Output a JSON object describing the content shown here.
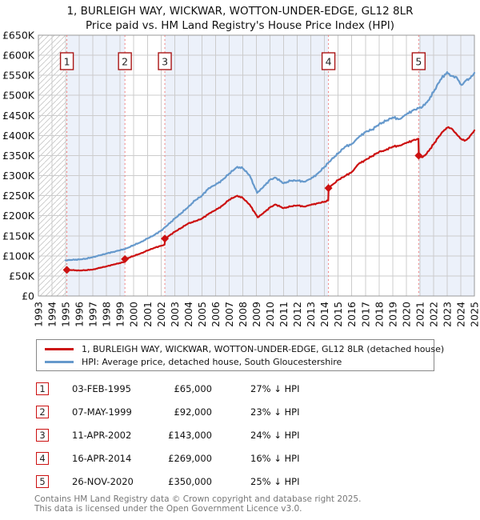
{
  "title": {
    "line1": "1, BURLEIGH WAY, WICKWAR, WOTTON-UNDER-EDGE, GL12 8LR",
    "line2": "Price paid vs. HM Land Registry's House Price Index (HPI)"
  },
  "legend": {
    "items": [
      {
        "label": "1, BURLEIGH WAY, WICKWAR, WOTTON-UNDER-EDGE, GL12 8LR (detached house)",
        "color": "#cc1111"
      },
      {
        "label": "HPI: Average price, detached house, South Gloucestershire",
        "color": "#6699cc"
      }
    ]
  },
  "footer": {
    "line1": "Contains HM Land Registry data © Crown copyright and database right 2025.",
    "line2": "This data is licensed under the Open Government Licence v3.0."
  },
  "chart_data": {
    "type": "line",
    "title": "Price paid vs. HPI",
    "xlabel": "",
    "ylabel": "",
    "xlim": [
      1993,
      2025
    ],
    "ylim": [
      0,
      650
    ],
    "ytick_step": 50,
    "ytick_labels": [
      "£0",
      "£50K",
      "£100K",
      "£150K",
      "£200K",
      "£250K",
      "£300K",
      "£350K",
      "£400K",
      "£450K",
      "£500K",
      "£550K",
      "£600K",
      "£650K"
    ],
    "xticks": [
      1993,
      1994,
      1995,
      1996,
      1997,
      1998,
      1999,
      2000,
      2001,
      2002,
      2003,
      2004,
      2005,
      2006,
      2007,
      2008,
      2009,
      2010,
      2011,
      2012,
      2013,
      2014,
      2015,
      2016,
      2017,
      2018,
      2019,
      2020,
      2021,
      2022,
      2023,
      2024,
      2025
    ],
    "grid": true,
    "legend_position": "below",
    "colors": {
      "band": "#ecf1fa",
      "grid": "#cccccc",
      "border": "#999999",
      "dashed": "#f28080",
      "hatch": "#c4c4c4",
      "marker_border": "#aa1616",
      "axis_text": "#111111"
    },
    "series": [
      {
        "name": "1, BURLEIGH WAY, WICKWAR, WOTTON-UNDER-EDGE, GL12 8LR (detached house)",
        "color": "#cc1111",
        "points": [
          [
            1995.09,
            65
          ],
          [
            1995.5,
            64.5
          ],
          [
            1996,
            63.5
          ],
          [
            1996.5,
            64.5
          ],
          [
            1997,
            66
          ],
          [
            1997.5,
            70
          ],
          [
            1998,
            74
          ],
          [
            1998.6,
            79
          ],
          [
            1999.2,
            84
          ],
          [
            1999.33,
            85
          ],
          [
            1999.36,
            92
          ],
          [
            2000,
            100
          ],
          [
            2000.5,
            106
          ],
          [
            2001,
            113
          ],
          [
            2001.5,
            120
          ],
          [
            2002.2,
            127
          ],
          [
            2002.26,
            128
          ],
          [
            2002.3,
            143
          ],
          [
            2003,
            160
          ],
          [
            2003.5,
            170
          ],
          [
            2004,
            181
          ],
          [
            2004.5,
            186
          ],
          [
            2005,
            193
          ],
          [
            2005.6,
            207
          ],
          [
            2006,
            214
          ],
          [
            2006.5,
            225
          ],
          [
            2007,
            240
          ],
          [
            2007.6,
            250
          ],
          [
            2008,
            244
          ],
          [
            2008.5,
            228
          ],
          [
            2009.1,
            196
          ],
          [
            2009.5,
            206
          ],
          [
            2010,
            221
          ],
          [
            2010.4,
            228
          ],
          [
            2011,
            219
          ],
          [
            2011.5,
            223
          ],
          [
            2012,
            226
          ],
          [
            2012.5,
            223
          ],
          [
            2013,
            227
          ],
          [
            2013.5,
            231
          ],
          [
            2014,
            235
          ],
          [
            2014.27,
            238
          ],
          [
            2014.3,
            269
          ],
          [
            2015,
            289
          ],
          [
            2015.5,
            299
          ],
          [
            2016,
            309
          ],
          [
            2016.5,
            329
          ],
          [
            2017,
            339
          ],
          [
            2017.5,
            349
          ],
          [
            2018,
            359
          ],
          [
            2018.4,
            363
          ],
          [
            2019,
            372
          ],
          [
            2019.5,
            375
          ],
          [
            2020,
            381
          ],
          [
            2020.5,
            388
          ],
          [
            2020.89,
            392
          ],
          [
            2020.92,
            350
          ],
          [
            2021.2,
            346
          ],
          [
            2021.5,
            355
          ],
          [
            2022,
            378
          ],
          [
            2022.4,
            398
          ],
          [
            2022.8,
            414
          ],
          [
            2023.1,
            421
          ],
          [
            2023.4,
            415
          ],
          [
            2023.7,
            403
          ],
          [
            2024.05,
            391
          ],
          [
            2024.35,
            388
          ],
          [
            2024.6,
            394
          ],
          [
            2025,
            413
          ]
        ]
      },
      {
        "name": "HPI: Average price, detached house, South Gloucestershire",
        "color": "#6699cc",
        "points": [
          [
            1995,
            89
          ],
          [
            1995.5,
            90
          ],
          [
            1996,
            91
          ],
          [
            1996.5,
            93
          ],
          [
            1997,
            97
          ],
          [
            1997.5,
            101
          ],
          [
            1998,
            106
          ],
          [
            1998.5,
            110
          ],
          [
            1999,
            114
          ],
          [
            1999.5,
            119
          ],
          [
            2000,
            127
          ],
          [
            2000.5,
            134
          ],
          [
            2001,
            143
          ],
          [
            2001.5,
            152
          ],
          [
            2002,
            163
          ],
          [
            2002.5,
            177
          ],
          [
            2003,
            193
          ],
          [
            2003.5,
            207
          ],
          [
            2004,
            222
          ],
          [
            2004.5,
            238
          ],
          [
            2005,
            250
          ],
          [
            2005.5,
            269
          ],
          [
            2006,
            277
          ],
          [
            2006.5,
            289
          ],
          [
            2007,
            305
          ],
          [
            2007.6,
            322
          ],
          [
            2008,
            318
          ],
          [
            2008.5,
            301
          ],
          [
            2009.05,
            257
          ],
          [
            2009.5,
            271
          ],
          [
            2010,
            290
          ],
          [
            2010.4,
            295
          ],
          [
            2011,
            281
          ],
          [
            2011.5,
            287
          ],
          [
            2012,
            288
          ],
          [
            2012.5,
            285
          ],
          [
            2013,
            292
          ],
          [
            2013.5,
            305
          ],
          [
            2014,
            322
          ],
          [
            2014.5,
            340
          ],
          [
            2015,
            355
          ],
          [
            2015.5,
            372
          ],
          [
            2016,
            379
          ],
          [
            2016.5,
            395
          ],
          [
            2017,
            409
          ],
          [
            2017.5,
            415
          ],
          [
            2018,
            428
          ],
          [
            2018.5,
            436
          ],
          [
            2019,
            445
          ],
          [
            2019.5,
            441
          ],
          [
            2020,
            452
          ],
          [
            2020.5,
            463
          ],
          [
            2020.91,
            468
          ],
          [
            2021.2,
            472
          ],
          [
            2021.6,
            487
          ],
          [
            2022,
            508
          ],
          [
            2022.5,
            539
          ],
          [
            2023,
            558
          ],
          [
            2023.3,
            549
          ],
          [
            2023.7,
            545
          ],
          [
            2024.05,
            526
          ],
          [
            2024.4,
            538
          ],
          [
            2024.7,
            543
          ],
          [
            2025,
            556
          ]
        ]
      }
    ],
    "transactions": [
      {
        "num": "1",
        "year": 1995.09,
        "value": 65,
        "date": "03-FEB-1995",
        "price": "£65,000",
        "vs_hpi": "27% ↓ HPI"
      },
      {
        "num": "2",
        "year": 1999.35,
        "value": 92,
        "date": "07-MAY-1999",
        "price": "£92,000",
        "vs_hpi": "23% ↓ HPI"
      },
      {
        "num": "3",
        "year": 2002.28,
        "value": 143,
        "date": "11-APR-2002",
        "price": "£143,000",
        "vs_hpi": "24% ↓ HPI"
      },
      {
        "num": "4",
        "year": 2014.29,
        "value": 269,
        "date": "16-APR-2014",
        "price": "£269,000",
        "vs_hpi": "16% ↓ HPI"
      },
      {
        "num": "5",
        "year": 2020.91,
        "value": 350,
        "date": "26-NOV-2020",
        "price": "£350,000",
        "vs_hpi": "25% ↓ HPI"
      }
    ]
  }
}
